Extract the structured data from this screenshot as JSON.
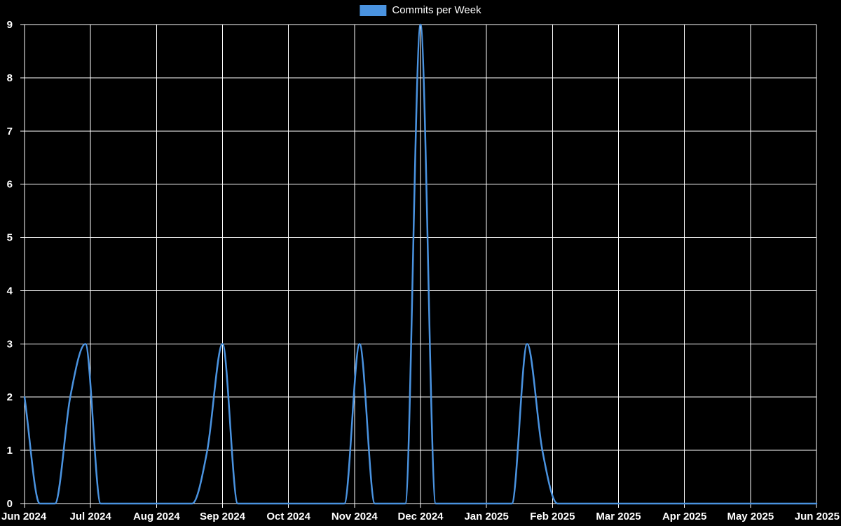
{
  "legend": {
    "label": "Commits per Week"
  },
  "chart_data": {
    "type": "line",
    "title": "Commits per Week",
    "legend_position": "top-center",
    "grid": true,
    "x_axis": {
      "tick_labels": [
        "Jun 2024",
        "Jul 2024",
        "Aug 2024",
        "Sep 2024",
        "Oct 2024",
        "Nov 2024",
        "Dec 2024",
        "Jan 2025",
        "Feb 2025",
        "Mar 2025",
        "Apr 2025",
        "May 2025",
        "Jun 2025"
      ],
      "unit": "month",
      "range": [
        "Jun 2024",
        "Jun 2025"
      ]
    },
    "y_axis": {
      "min": 0,
      "max": 9,
      "ticks": [
        0,
        1,
        2,
        3,
        4,
        5,
        6,
        7,
        8,
        9
      ],
      "label": ""
    },
    "series": [
      {
        "name": "Commits per Week",
        "color": "#4a93e0",
        "x_unit": "week_index_from_Jun_2024",
        "x_range": [
          0,
          52
        ],
        "values": [
          2,
          0,
          0,
          2,
          3,
          0,
          0,
          0,
          0,
          0,
          0,
          0,
          1,
          3,
          0,
          0,
          0,
          0,
          0,
          0,
          0,
          0,
          3,
          0,
          0,
          0,
          9,
          0,
          0,
          0,
          0,
          0,
          0,
          3,
          1,
          0,
          0,
          0,
          0,
          0,
          0,
          0,
          0,
          0,
          0,
          0,
          0,
          0,
          0,
          0,
          0,
          0,
          0
        ],
        "notable_points": [
          {
            "approx_date": "early Jun 2024",
            "value": 2
          },
          {
            "approx_date": "mid Jul 2024",
            "value": 3
          },
          {
            "approx_date": "mid Sep 2024",
            "value": 3
          },
          {
            "approx_date": "early Nov 2024",
            "value": 3
          },
          {
            "approx_date": "mid Dec 2024",
            "value": 9
          },
          {
            "approx_date": "mid Jan 2025",
            "value": 3
          }
        ]
      }
    ],
    "colors": {
      "background": "#000000",
      "grid": "#ffffff",
      "text": "#ffffff",
      "line": "#4a93e0"
    }
  }
}
